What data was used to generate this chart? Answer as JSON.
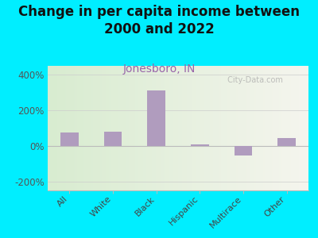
{
  "title": "Change in per capita income between\n2000 and 2022",
  "subtitle": "Jonesboro, IN",
  "categories": [
    "All",
    "White",
    "Black",
    "Hispanic",
    "Multirace",
    "Other"
  ],
  "values": [
    75,
    80,
    310,
    10,
    -55,
    45
  ],
  "bar_color": "#b09cbe",
  "title_fontsize": 12,
  "title_color": "#111111",
  "subtitle_fontsize": 10,
  "subtitle_color": "#9966aa",
  "background_outer": "#00eeff",
  "background_inner_left": "#d8ecd0",
  "background_inner_right": "#f5f5ee",
  "ylim": [
    -250,
    450
  ],
  "yticks": [
    -200,
    0,
    200,
    400
  ],
  "ytick_labels": [
    "-200%",
    "0%",
    "200%",
    "400%"
  ],
  "watermark": " City-Data.com"
}
